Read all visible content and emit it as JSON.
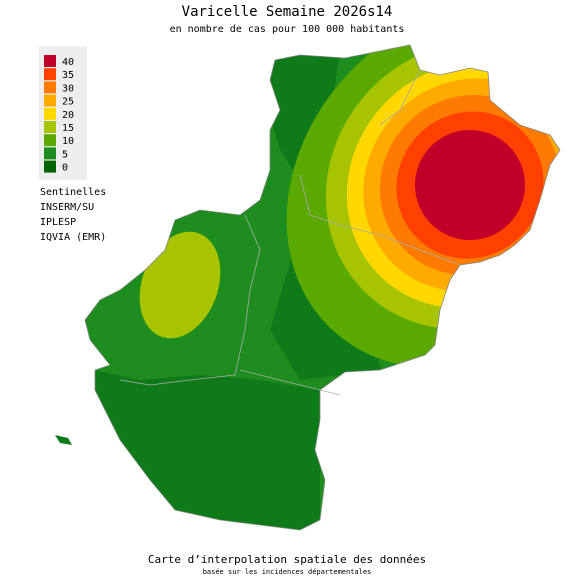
{
  "title": "Varicelle Semaine 2026s14",
  "subtitle": "en nombre de cas pour 100 000 habitants",
  "legend": {
    "items": [
      {
        "value": 40,
        "color": "#c00028"
      },
      {
        "value": 35,
        "color": "#ff4000"
      },
      {
        "value": 30,
        "color": "#ff7a00"
      },
      {
        "value": 25,
        "color": "#ffaa00"
      },
      {
        "value": 20,
        "color": "#ffd800"
      },
      {
        "value": 15,
        "color": "#a8c400"
      },
      {
        "value": 10,
        "color": "#5aa800"
      },
      {
        "value": 5,
        "color": "#1e8c1e"
      },
      {
        "value": 0,
        "color": "#006400"
      }
    ]
  },
  "sources": [
    "Sentinelles",
    "INSERM/SU",
    "IPLESP",
    "IQVIA (EMR)"
  ],
  "footer": {
    "line1": "Carte d’interpolation spatiale des données",
    "line2": "basée sur les incidences départementales"
  }
}
